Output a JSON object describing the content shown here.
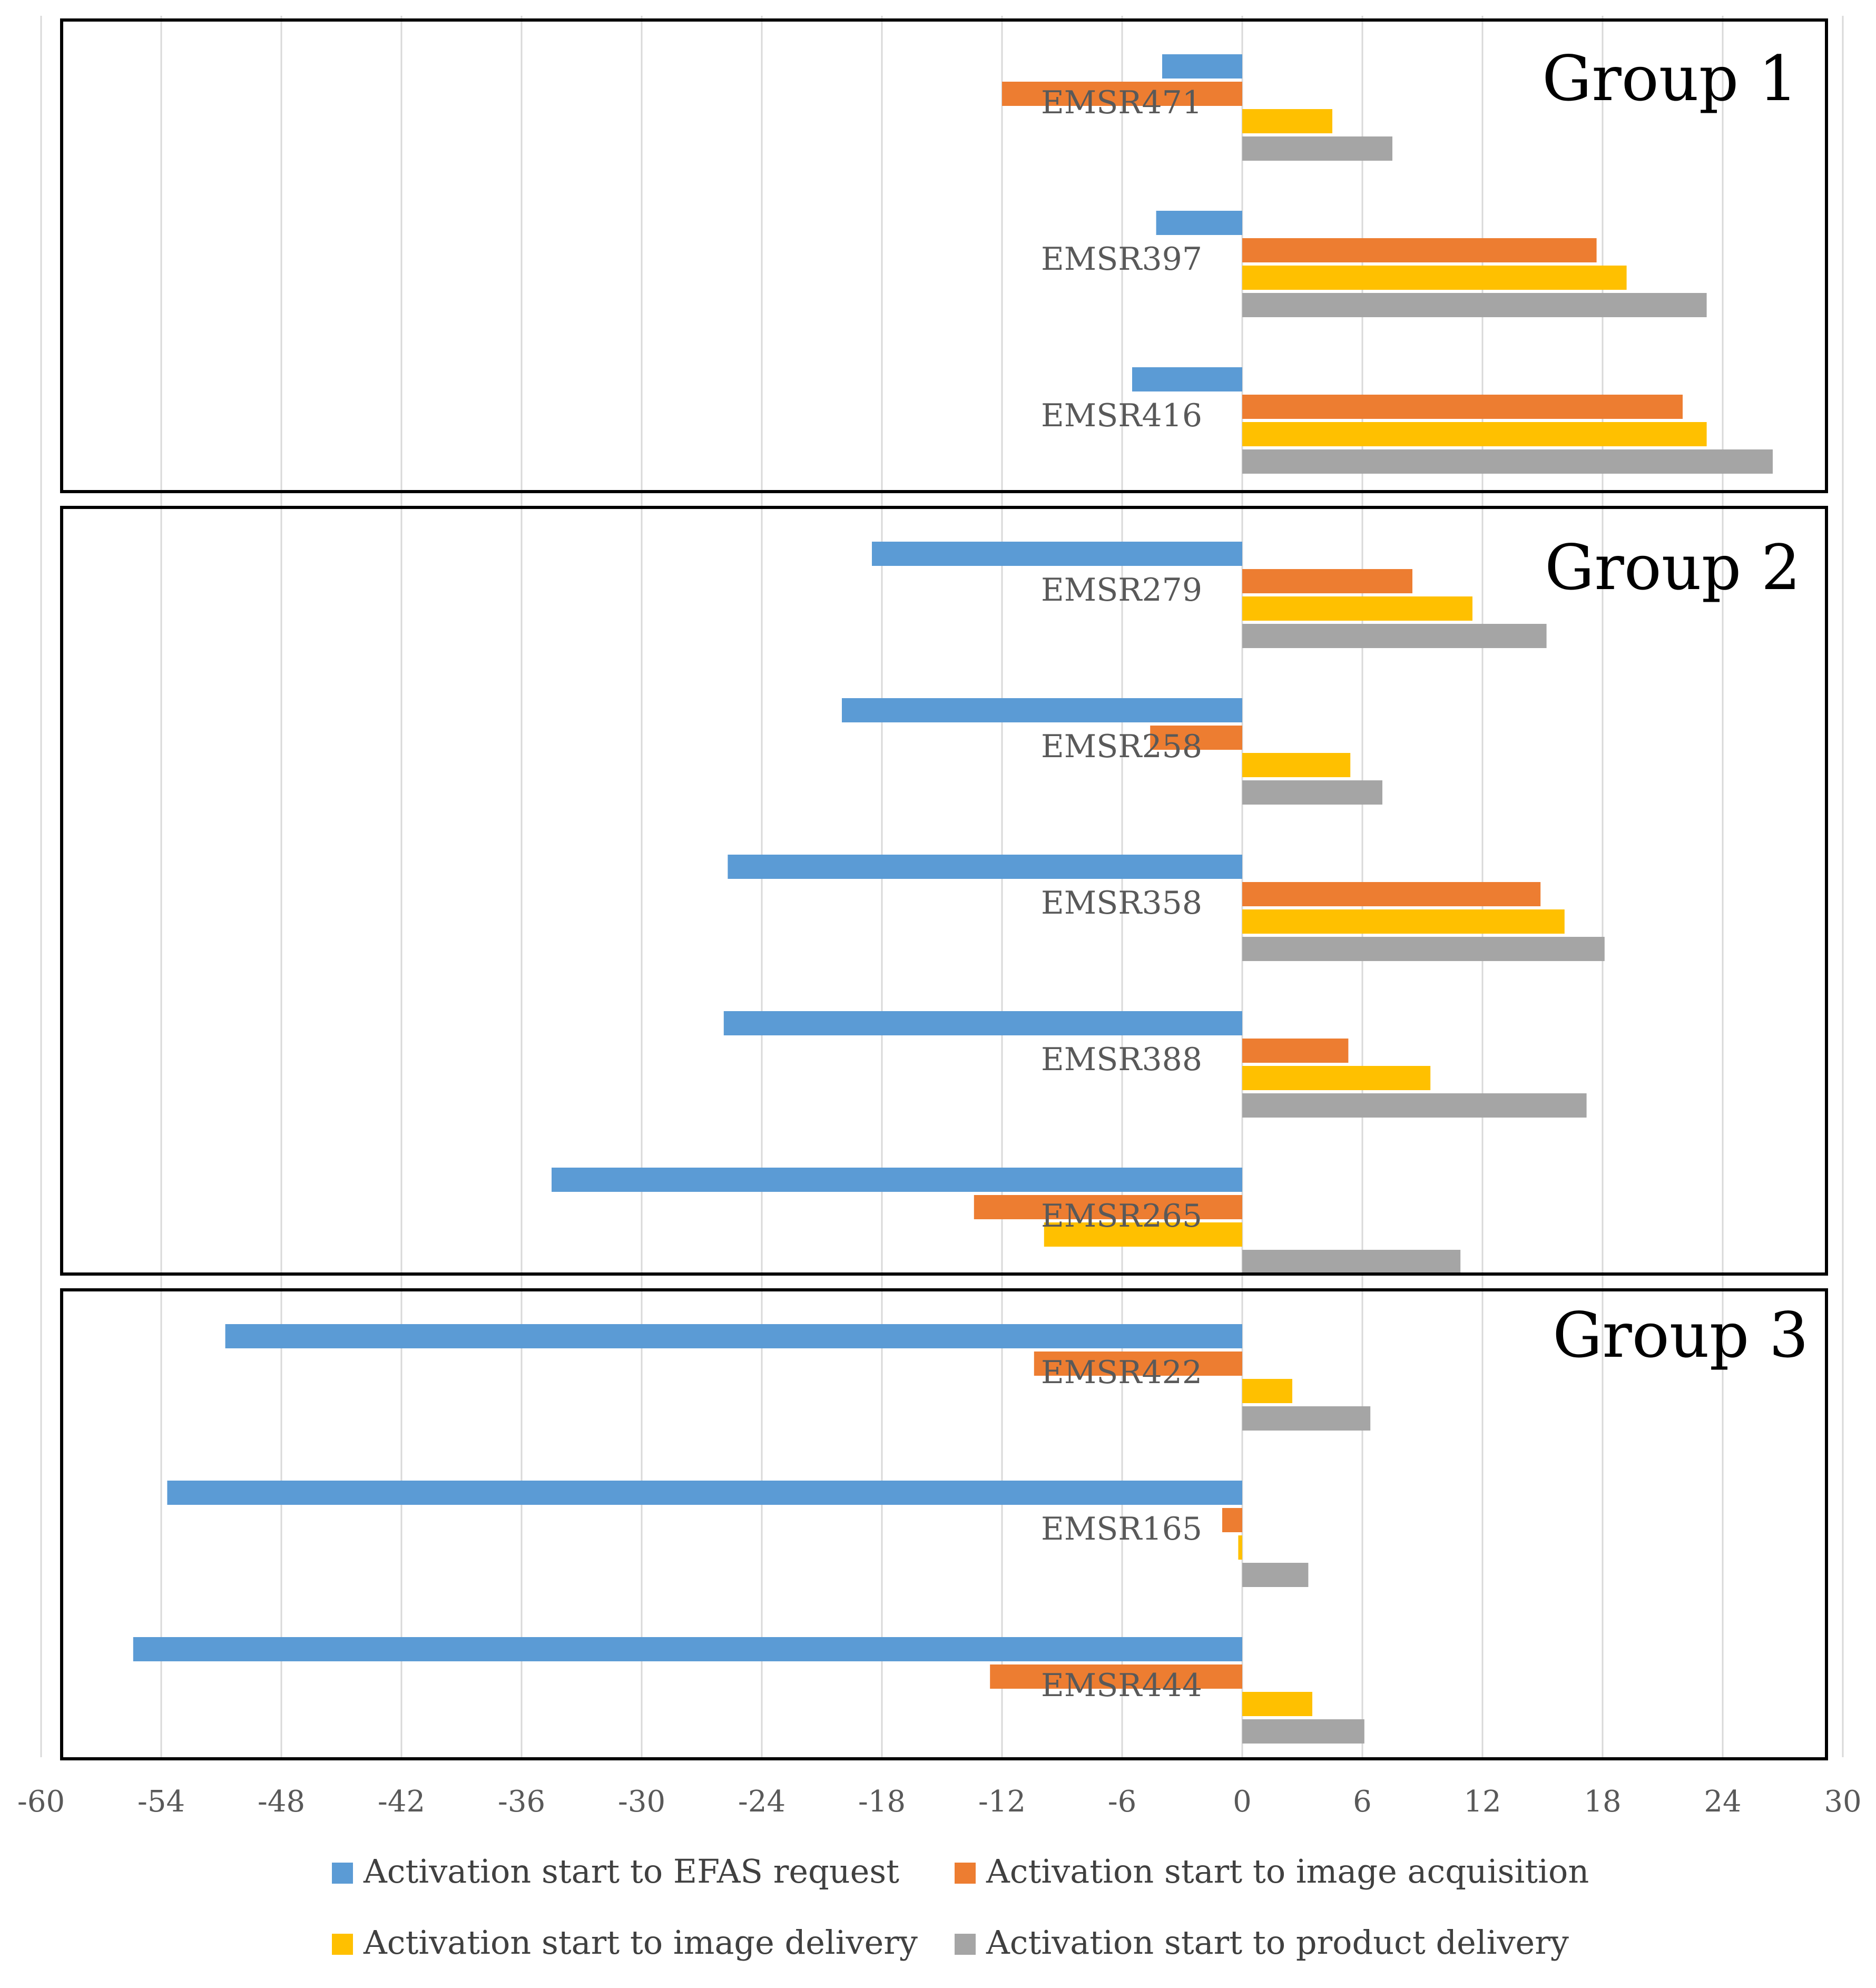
{
  "chart_data": {
    "type": "bar",
    "orientation": "horizontal",
    "title": "",
    "xlabel": "",
    "ylabel": "",
    "xlim": [
      -60,
      30
    ],
    "xticks": [
      "-60",
      "-54",
      "-48",
      "-42",
      "-36",
      "-30",
      "-24",
      "-18",
      "-12",
      "-6",
      "0",
      "6",
      "12",
      "18",
      "24",
      "30"
    ],
    "grid": true,
    "legend_position": "bottom",
    "series": [
      {
        "name": "Activation start to EFAS request",
        "color": "#5B9BD5"
      },
      {
        "name": "Activation start to image acquisition",
        "color": "#ED7D31"
      },
      {
        "name": "Activation start to image delivery",
        "color": "#FFC000"
      },
      {
        "name": "Activation start to product delivery",
        "color": "#A5A5A5"
      }
    ],
    "groups": [
      {
        "label": "Group 1",
        "events": [
          {
            "name": "EMSR471",
            "values": [
              -4,
              -12,
              4.5,
              7.5
            ]
          },
          {
            "name": "EMSR397",
            "values": [
              -4.3,
              17.7,
              19.2,
              23.2
            ]
          },
          {
            "name": "EMSR416",
            "values": [
              -5.5,
              22,
              23.2,
              26.5
            ]
          }
        ]
      },
      {
        "label": "Group 2",
        "events": [
          {
            "name": "EMSR279",
            "values": [
              -18.5,
              8.5,
              11.5,
              15.2
            ]
          },
          {
            "name": "EMSR258",
            "values": [
              -20,
              -4.6,
              5.4,
              7
            ]
          },
          {
            "name": "EMSR358",
            "values": [
              -25.7,
              14.9,
              16.1,
              18.1
            ]
          },
          {
            "name": "EMSR388",
            "values": [
              -25.9,
              5.3,
              9.4,
              17.2
            ]
          },
          {
            "name": "EMSR265",
            "values": [
              -34.5,
              -13.4,
              -9.9,
              10.9
            ]
          }
        ]
      },
      {
        "label": "Group 3",
        "events": [
          {
            "name": "EMSR422",
            "values": [
              -50.8,
              -10.4,
              2.5,
              6.4
            ]
          },
          {
            "name": "EMSR165",
            "values": [
              -53.7,
              -1,
              -0.2,
              3.3
            ]
          },
          {
            "name": "EMSR444",
            "values": [
              -55.4,
              -12.6,
              3.5,
              6.1
            ]
          }
        ]
      }
    ]
  }
}
